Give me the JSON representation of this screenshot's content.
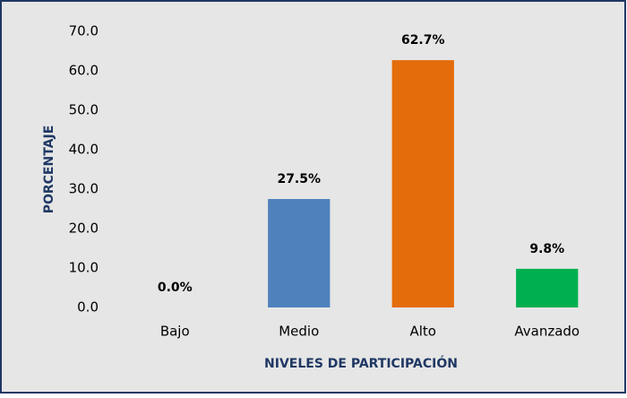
{
  "chart_data": {
    "type": "bar",
    "categories": [
      "Bajo",
      "Medio",
      "Alto",
      "Avanzado"
    ],
    "values": [
      0,
      27.5,
      62.7,
      9.8
    ],
    "value_labels": [
      "0.0%",
      "27.5%",
      "62.7%",
      "9.8%"
    ],
    "colors": [
      "#4f81bd",
      "#4f81bd",
      "#e46c0a",
      "#00b050"
    ],
    "ylim": [
      0,
      70
    ],
    "yticks": [
      {
        "value": 0,
        "label": "0.0"
      },
      {
        "value": 10,
        "label": "10.0"
      },
      {
        "value": 20,
        "label": "20.0"
      },
      {
        "value": 30,
        "label": "30.0"
      },
      {
        "value": 40,
        "label": "40.0"
      },
      {
        "value": 50,
        "label": "50.0"
      },
      {
        "value": 60,
        "label": "60.0"
      },
      {
        "value": 70,
        "label": "70.0"
      }
    ],
    "ylabel": "PORCENTAJE",
    "xlabel": "NIVELES DE PARTICIPACIÓN",
    "grid": false
  }
}
